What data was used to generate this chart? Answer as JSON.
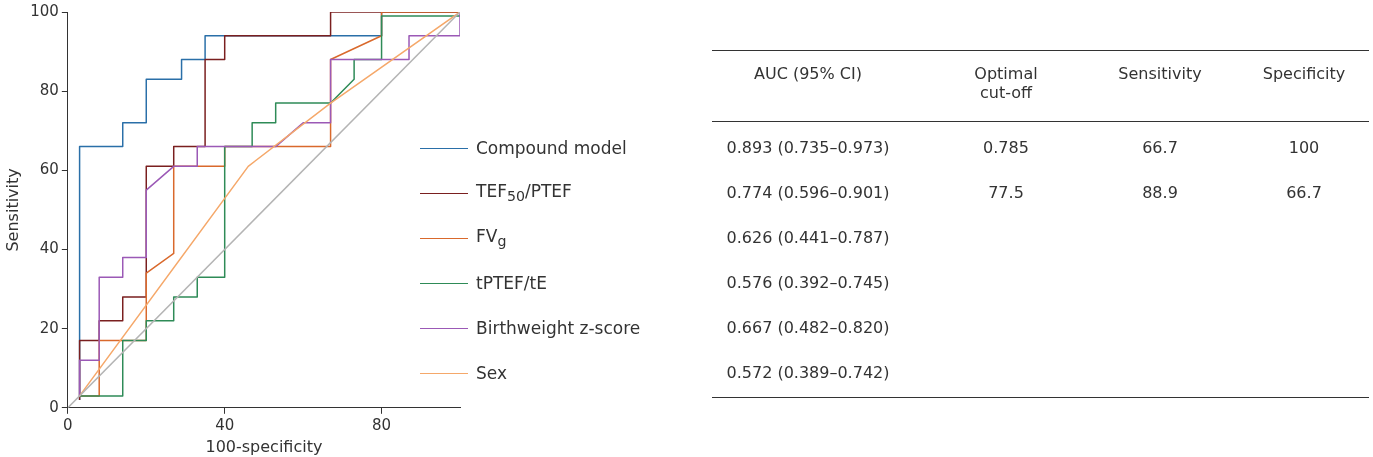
{
  "chart_data": {
    "type": "line",
    "xlabel": "100-specificity",
    "ylabel": "Sensitivity",
    "xlim": [
      0,
      100
    ],
    "ylim": [
      0,
      100
    ],
    "xticks": [
      0,
      40,
      80
    ],
    "yticks": [
      0,
      20,
      40,
      60,
      80,
      100
    ],
    "grid": false,
    "legend": "right",
    "marker": "none",
    "line_style": "solid",
    "series": [
      {
        "name": "Compound model",
        "color": "#2a6fa8",
        "x": [
          3,
          3,
          14,
          14,
          20,
          20,
          29,
          29,
          35,
          35,
          80,
          80,
          100
        ],
        "values": [
          2,
          66,
          66,
          72,
          72,
          83,
          83,
          88,
          88,
          94,
          94,
          100,
          100
        ]
      },
      {
        "name": "TEF$_{50}$/PTEF",
        "color": "#7a1f1f",
        "x": [
          3,
          3,
          8,
          8,
          14,
          14,
          20,
          20,
          27,
          27,
          35,
          35,
          40,
          40,
          67,
          67,
          100
        ],
        "values": [
          2,
          17,
          17,
          22,
          22,
          28,
          28,
          61,
          61,
          66,
          66,
          88,
          88,
          94,
          94,
          100,
          100
        ]
      },
      {
        "name": "FV$_{g}$",
        "color": "#d9692c",
        "x": [
          3,
          8,
          8,
          20,
          20,
          27,
          27,
          40,
          40,
          67,
          67,
          80,
          80,
          100
        ],
        "values": [
          3,
          3,
          17,
          17,
          34,
          39,
          61,
          61,
          66,
          66,
          88,
          94,
          100,
          100
        ]
      },
      {
        "name": "tPTEF/tE",
        "color": "#2e8b57",
        "x": [
          3,
          14,
          14,
          20,
          20,
          27,
          27,
          33,
          33,
          40,
          40,
          47,
          47,
          53,
          53,
          67,
          73,
          73,
          80,
          80,
          100
        ],
        "values": [
          3,
          3,
          17,
          17,
          22,
          22,
          28,
          28,
          33,
          33,
          66,
          66,
          72,
          72,
          77,
          77,
          83,
          88,
          88,
          99,
          99
        ]
      },
      {
        "name": "Birthweight z-score",
        "color": "#9b59b6",
        "x": [
          3,
          3,
          8,
          8,
          14,
          14,
          20,
          20,
          27,
          33,
          33,
          53,
          60,
          67,
          67,
          87,
          87,
          100,
          100
        ],
        "values": [
          3,
          12,
          12,
          33,
          33,
          38,
          38,
          55,
          61,
          61,
          66,
          66,
          72,
          72,
          88,
          88,
          94,
          94,
          100
        ]
      },
      {
        "name": "Sex",
        "color": "#f5a86a",
        "x": [
          3,
          46,
          67,
          100
        ],
        "values": [
          3,
          61,
          77,
          100
        ]
      },
      {
        "color": "#b4b4b4",
        "x": [
          0,
          100
        ],
        "values": [
          0,
          100
        ]
      }
    ],
    "annotations": [
      "AUC (95% CI)",
      "Optimal cut-off",
      "Sensitivity",
      "Specificity",
      "0.893 (0.735–0.973)",
      "0.785",
      "66.7",
      "100",
      "0.774 (0.596–0.901)",
      "77.5",
      "88.9",
      "66.7",
      "0.626 (0.441–0.787)",
      "0.576 (0.392–0.745)",
      "0.667 (0.482–0.820)",
      "0.572 (0.389–0.742)"
    ]
  }
}
